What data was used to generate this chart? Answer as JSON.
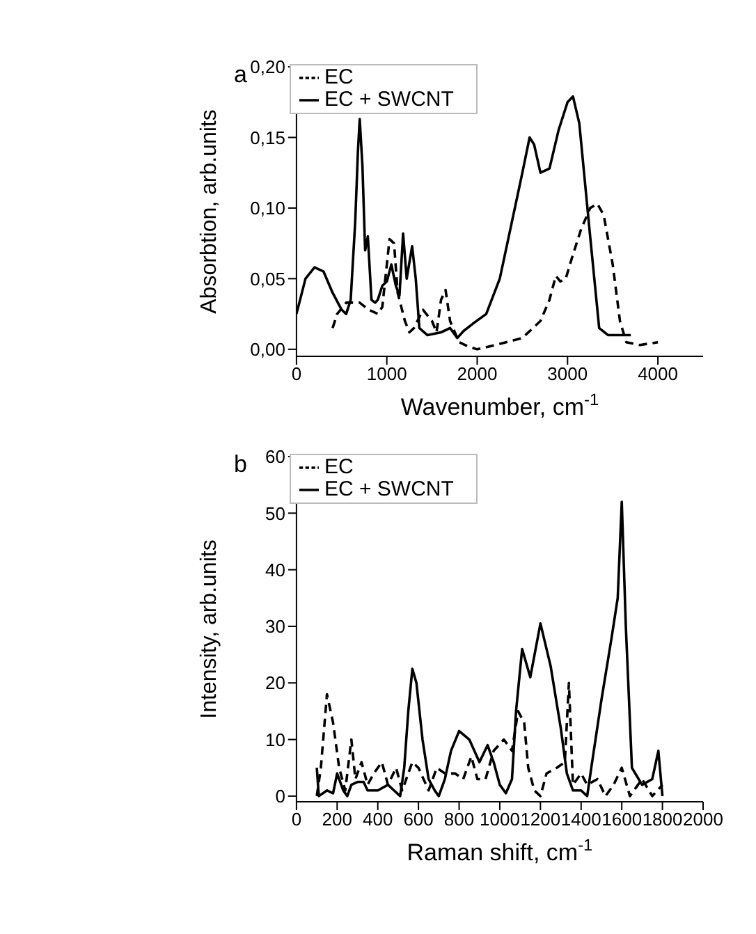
{
  "chart_data": [
    {
      "type": "line",
      "xlabel": "Wavenumber, cm$^{-1}$",
      "ylabel": "Absorbtion, arb.units",
      "annotations": [
        "a"
      ],
      "legend": "top",
      "xlim": [
        0,
        4500
      ],
      "xticks": [
        0,
        1000,
        2000,
        3000,
        4000
      ],
      "ylim": [
        -0.005,
        0.2
      ],
      "yticks": [
        {
          "value": 0,
          "label": "0,00"
        },
        {
          "value": 0.05,
          "label": "0,05"
        },
        {
          "value": 0.1,
          "label": "0,10"
        },
        {
          "value": 0.15,
          "label": "0,15"
        },
        {
          "value": 0.2,
          "label": "0,20"
        }
      ],
      "series": [
        {
          "name": "EC",
          "color": "#000000",
          "line_style": "dashed",
          "x": [
            400,
            450,
            550,
            700,
            800,
            900,
            950,
            1000,
            1030,
            1080,
            1120,
            1200,
            1250,
            1300,
            1400,
            1500,
            1550,
            1600,
            1650,
            1700,
            1800,
            1900,
            2000,
            2200,
            2500,
            2700,
            2800,
            2870,
            2920,
            2980,
            3050,
            3150,
            3250,
            3330,
            3400,
            3500,
            3580,
            3650,
            3800,
            4000
          ],
          "values": [
            0.015,
            0.025,
            0.033,
            0.033,
            0.028,
            0.025,
            0.03,
            0.06,
            0.078,
            0.075,
            0.04,
            0.02,
            0.012,
            0.015,
            0.028,
            0.02,
            0.012,
            0.035,
            0.042,
            0.02,
            0.005,
            0.002,
            0,
            0.003,
            0.008,
            0.02,
            0.035,
            0.052,
            0.048,
            0.05,
            0.065,
            0.085,
            0.1,
            0.103,
            0.095,
            0.06,
            0.02,
            0.005,
            0.003,
            0.005
          ]
        },
        {
          "name": "EC + SWCNT",
          "color": "#000000",
          "line_style": "solid",
          "x": [
            0,
            100,
            200,
            300,
            400,
            500,
            550,
            600,
            650,
            680,
            700,
            730,
            760,
            790,
            830,
            870,
            900,
            950,
            1000,
            1050,
            1100,
            1140,
            1180,
            1220,
            1280,
            1320,
            1360,
            1450,
            1600,
            1700,
            1780,
            1850,
            1950,
            2100,
            2250,
            2400,
            2500,
            2580,
            2630,
            2700,
            2800,
            2900,
            3000,
            3060,
            3130,
            3250,
            3350,
            3450,
            3700
          ],
          "values": [
            0.025,
            0.05,
            0.058,
            0.055,
            0.04,
            0.028,
            0.025,
            0.035,
            0.09,
            0.14,
            0.163,
            0.13,
            0.07,
            0.08,
            0.035,
            0.033,
            0.035,
            0.045,
            0.048,
            0.06,
            0.045,
            0.038,
            0.082,
            0.05,
            0.073,
            0.05,
            0.015,
            0.01,
            0.012,
            0.015,
            0.008,
            0.013,
            0.018,
            0.025,
            0.05,
            0.095,
            0.125,
            0.15,
            0.145,
            0.125,
            0.128,
            0.155,
            0.175,
            0.179,
            0.16,
            0.08,
            0.015,
            0.01,
            0.01
          ]
        }
      ]
    },
    {
      "type": "line",
      "xlabel": "Raman shift, cm$^{-1}$",
      "ylabel": "Intensity, arb.units",
      "annotations": [
        "b"
      ],
      "legend": "top",
      "xlim": [
        0,
        2000
      ],
      "xticks": [
        0,
        200,
        400,
        600,
        800,
        1000,
        1200,
        1400,
        1600,
        1800,
        2000
      ],
      "ylim": [
        -1,
        60
      ],
      "yticks": [
        0,
        10,
        20,
        30,
        40,
        50,
        60
      ],
      "series": [
        {
          "name": "EC",
          "color": "#000000",
          "line_style": "dashed",
          "x": [
            100,
            120,
            150,
            180,
            210,
            240,
            270,
            290,
            320,
            350,
            380,
            420,
            450,
            490,
            520,
            570,
            600,
            650,
            690,
            730,
            780,
            820,
            860,
            890,
            930,
            970,
            1020,
            1060,
            1090,
            1120,
            1140,
            1170,
            1200,
            1230,
            1280,
            1320,
            1340,
            1360,
            1400,
            1430,
            1480,
            1520,
            1560,
            1600,
            1640,
            1700,
            1750,
            1800
          ],
          "values": [
            0,
            5,
            18,
            13,
            5,
            1,
            10,
            3,
            6,
            2,
            4,
            6,
            2,
            5,
            1,
            6,
            5,
            1,
            5,
            4,
            4,
            3,
            7,
            3,
            3,
            8,
            10,
            8,
            15,
            13,
            5,
            1,
            0,
            4,
            5,
            6,
            20,
            2,
            4,
            2,
            3,
            0,
            2,
            5,
            0,
            3,
            0,
            2
          ]
        },
        {
          "name": "EC + SWCNT",
          "color": "#000000",
          "line_style": "solid",
          "x": [
            100,
            110,
            150,
            180,
            200,
            230,
            250,
            270,
            300,
            330,
            350,
            400,
            450,
            480,
            510,
            530,
            550,
            570,
            590,
            620,
            650,
            680,
            700,
            730,
            760,
            800,
            850,
            900,
            940,
            970,
            1000,
            1030,
            1060,
            1080,
            1110,
            1150,
            1200,
            1250,
            1300,
            1330,
            1360,
            1400,
            1430,
            1450,
            1500,
            1550,
            1580,
            1600,
            1620,
            1650,
            1700,
            1750,
            1780,
            1800
          ],
          "values": [
            5,
            0,
            1,
            0.5,
            4,
            1,
            0,
            2,
            2.5,
            2.5,
            1,
            1,
            2,
            1,
            0,
            5,
            15,
            22.5,
            20,
            10,
            3,
            1,
            0,
            3,
            8,
            11.5,
            10,
            6,
            9,
            6,
            2,
            0.5,
            3,
            15,
            26,
            21,
            30.5,
            23,
            12,
            4,
            1,
            1,
            0,
            5,
            17,
            28,
            35,
            52,
            30,
            5,
            2,
            3,
            8,
            0
          ]
        }
      ]
    }
  ]
}
